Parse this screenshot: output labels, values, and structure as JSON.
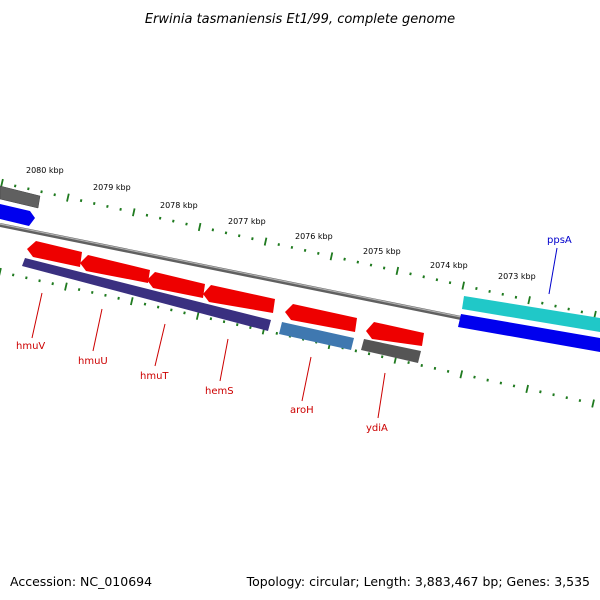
{
  "title": "Erwinia tasmaniensis Et1/99, complete genome",
  "footer": {
    "accession": "Accession: NC_010694",
    "summary": "Topology: circular; Length: 3,883,467 bp; Genes: 3,535"
  },
  "colors": {
    "backbone": "#808080",
    "ticks": "#1f7a1f",
    "label_red": "#cc0000",
    "label_blue": "#0000cc"
  },
  "scale_labels": [
    "2080 kbp",
    "2079 kbp",
    "2078 kbp",
    "2077 kbp",
    "2076 kbp",
    "2075 kbp",
    "2074 kbp",
    "2073 kbp"
  ],
  "genes": [
    {
      "name": "hmuV",
      "label_color": "#cc0000"
    },
    {
      "name": "hmuU",
      "label_color": "#cc0000"
    },
    {
      "name": "hmuT",
      "label_color": "#cc0000"
    },
    {
      "name": "hemS",
      "label_color": "#cc0000"
    },
    {
      "name": "aroH",
      "label_color": "#cc0000"
    },
    {
      "name": "ydiA",
      "label_color": "#cc0000"
    },
    {
      "name": "ppsA",
      "label_color": "#0000cc"
    }
  ],
  "features": [
    {
      "id": "upper-left-gray-gene",
      "color": "#606060"
    },
    {
      "id": "upper-left-blue-gene",
      "color": "#0000ee"
    },
    {
      "id": "hmuV-gene",
      "color": "#ee0000"
    },
    {
      "id": "hmuU-gene",
      "color": "#ee0000"
    },
    {
      "id": "hmuT-gene",
      "color": "#ee0000"
    },
    {
      "id": "hemS-gene",
      "color": "#ee0000"
    },
    {
      "id": "aroH-gene",
      "color": "#ee0000"
    },
    {
      "id": "ydiA-gene",
      "color": "#ee0000"
    },
    {
      "id": "hmu-operon-cds",
      "color": "#3a3080"
    },
    {
      "id": "aroH-cds",
      "color": "#3f78b0"
    },
    {
      "id": "ydiA-cds",
      "color": "#555555"
    },
    {
      "id": "ppsA-gene",
      "color": "#20c8c8"
    },
    {
      "id": "ppsA-cds",
      "color": "#0000ee"
    }
  ]
}
